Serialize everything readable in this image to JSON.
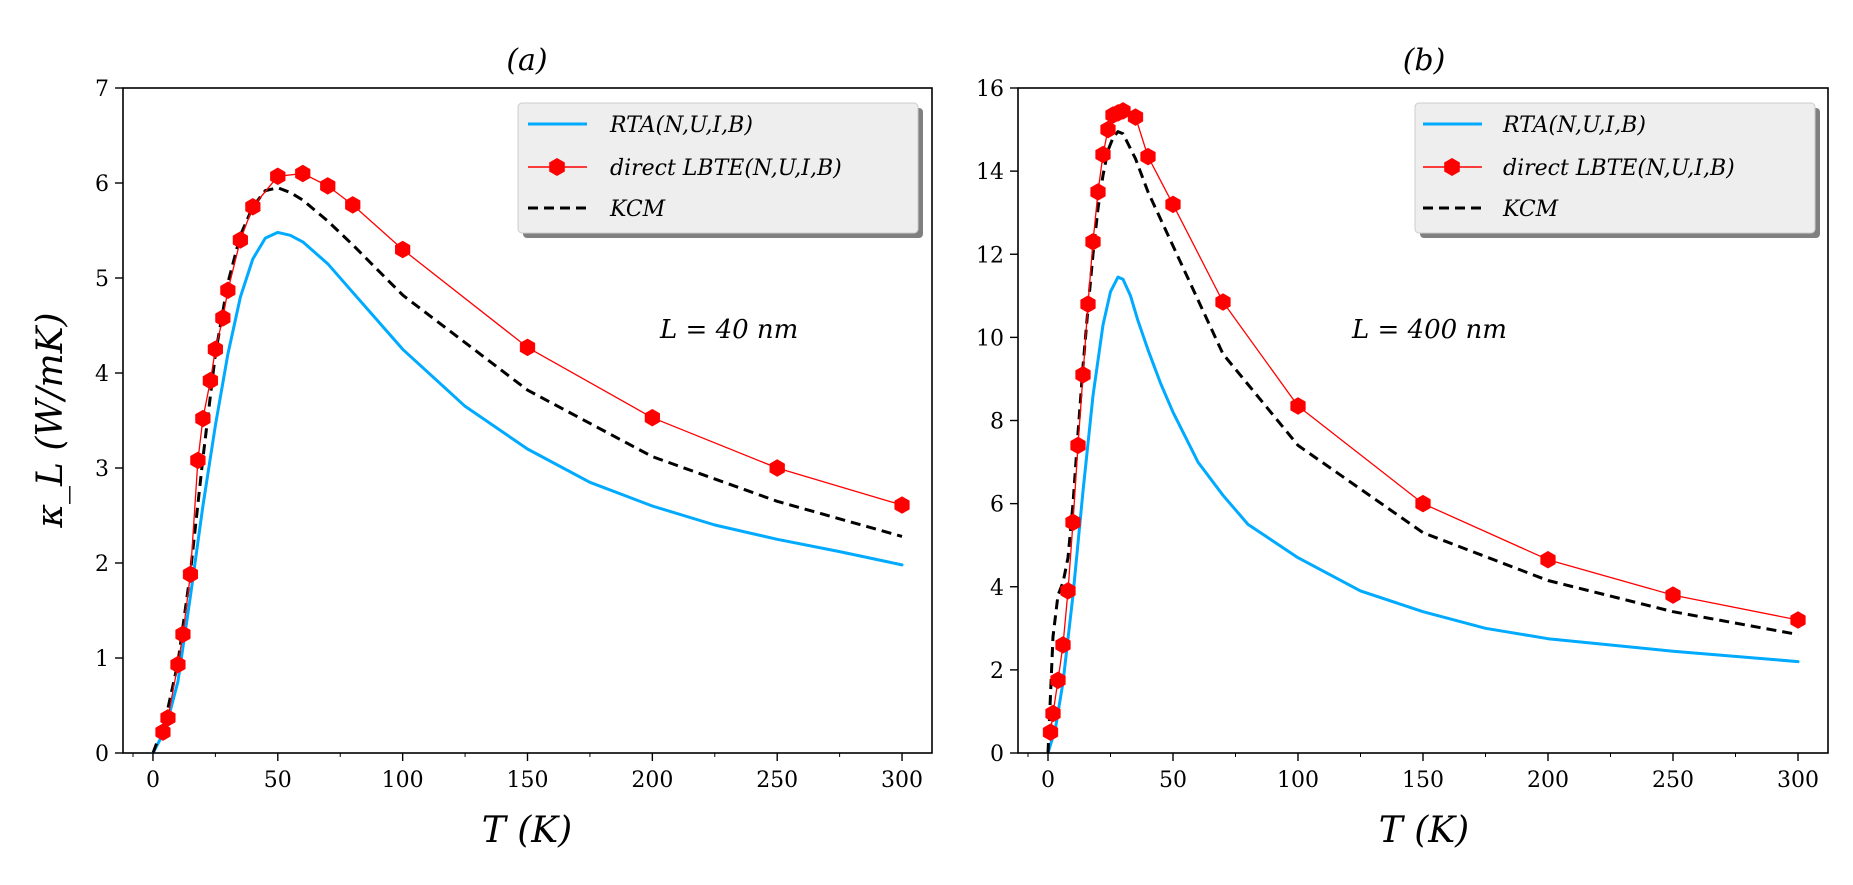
{
  "colors": {
    "rta": "#00aaff",
    "lbte": "#ff0000",
    "kcm": "#000000",
    "legend_bg": "#eeeeee"
  },
  "chart_data": [
    {
      "type": "line",
      "title": "(a)",
      "xlabel": "T (K)",
      "ylabel": "κ_L (W/mK)",
      "xlim": [
        -12,
        312
      ],
      "ylim": [
        0,
        7
      ],
      "xticks": [
        "0",
        "50",
        "100",
        "150",
        "200",
        "250",
        "300"
      ],
      "yticks": [
        "0",
        "1",
        "2",
        "3",
        "4",
        "5",
        "6",
        "7"
      ],
      "annotation": "L = 40 nm",
      "legend_position": "top-right",
      "series": [
        {
          "name": "RTA(N,U,I,B)",
          "style": "solid",
          "x": [
            0,
            5,
            10,
            15,
            20,
            25,
            30,
            35,
            40,
            45,
            50,
            55,
            60,
            70,
            80,
            90,
            100,
            125,
            150,
            175,
            200,
            225,
            250,
            275,
            300
          ],
          "y": [
            0.0,
            0.25,
            0.75,
            1.65,
            2.6,
            3.45,
            4.2,
            4.8,
            5.2,
            5.42,
            5.48,
            5.45,
            5.38,
            5.15,
            4.85,
            4.55,
            4.25,
            3.65,
            3.2,
            2.85,
            2.6,
            2.4,
            2.25,
            2.12,
            1.98
          ]
        },
        {
          "name": "direct LBTE(N,U,I,B)",
          "style": "line-hexmarker",
          "x": [
            4,
            6,
            10,
            12,
            15,
            18,
            20,
            23,
            25,
            28,
            30,
            35,
            40,
            50,
            60,
            70,
            80,
            100,
            150,
            200,
            250,
            300
          ],
          "y": [
            0.22,
            0.37,
            0.93,
            1.25,
            1.88,
            3.08,
            3.52,
            3.92,
            4.25,
            4.58,
            4.87,
            5.4,
            5.75,
            6.07,
            6.1,
            5.97,
            5.77,
            5.3,
            4.27,
            3.53,
            3.0,
            2.61
          ]
        },
        {
          "name": "KCM",
          "style": "dashed",
          "x": [
            0,
            5,
            10,
            15,
            20,
            25,
            30,
            35,
            40,
            45,
            50,
            55,
            60,
            70,
            80,
            100,
            150,
            200,
            250,
            300
          ],
          "y": [
            0.0,
            0.35,
            0.95,
            1.9,
            3.1,
            4.2,
            4.95,
            5.45,
            5.75,
            5.92,
            5.95,
            5.9,
            5.82,
            5.6,
            5.35,
            4.82,
            3.82,
            3.12,
            2.65,
            2.28
          ]
        }
      ]
    },
    {
      "type": "line",
      "title": "(b)",
      "xlabel": "T (K)",
      "ylabel": "",
      "xlim": [
        -12,
        312
      ],
      "ylim": [
        0,
        16
      ],
      "xticks": [
        "0",
        "50",
        "100",
        "150",
        "200",
        "250",
        "300"
      ],
      "yticks": [
        "0",
        "2",
        "4",
        "6",
        "8",
        "10",
        "12",
        "14",
        "16"
      ],
      "annotation": "L = 400 nm",
      "legend_position": "top-right",
      "series": [
        {
          "name": "RTA(N,U,I,B)",
          "style": "solid",
          "x": [
            0,
            3,
            6,
            10,
            14,
            18,
            22,
            25,
            28,
            30,
            33,
            36,
            40,
            45,
            50,
            60,
            70,
            80,
            100,
            125,
            150,
            175,
            200,
            250,
            300
          ],
          "y": [
            0.0,
            0.6,
            1.7,
            3.8,
            6.3,
            8.6,
            10.3,
            11.1,
            11.45,
            11.4,
            11.0,
            10.4,
            9.7,
            8.9,
            8.2,
            7.0,
            6.2,
            5.5,
            4.7,
            3.9,
            3.4,
            3.0,
            2.75,
            2.45,
            2.2
          ]
        },
        {
          "name": "direct LBTE(N,U,I,B)",
          "style": "line-hexmarker",
          "x": [
            1,
            2,
            4,
            6,
            8,
            10,
            12,
            14,
            16,
            18,
            20,
            22,
            24,
            26,
            28,
            30,
            35,
            40,
            50,
            70,
            100,
            150,
            200,
            250,
            300
          ],
          "y": [
            0.5,
            0.95,
            1.75,
            2.6,
            3.9,
            5.55,
            7.4,
            9.1,
            10.8,
            12.3,
            13.5,
            14.4,
            15.0,
            15.35,
            15.4,
            15.45,
            15.3,
            14.35,
            13.2,
            10.85,
            8.35,
            6.0,
            4.65,
            3.8,
            3.2
          ]
        },
        {
          "name": "KCM",
          "style": "dashed",
          "x": [
            0,
            2,
            4,
            6,
            8,
            10,
            12,
            14,
            16,
            18,
            20,
            22,
            24,
            26,
            28,
            30,
            35,
            40,
            50,
            70,
            100,
            150,
            200,
            250,
            300
          ],
          "y": [
            0.0,
            2.8,
            3.8,
            4.1,
            4.7,
            6.0,
            7.7,
            9.3,
            10.7,
            12.0,
            13.1,
            13.9,
            14.5,
            14.8,
            14.95,
            14.9,
            14.3,
            13.5,
            12.2,
            9.6,
            7.4,
            5.3,
            4.15,
            3.4,
            2.85
          ]
        }
      ]
    }
  ]
}
